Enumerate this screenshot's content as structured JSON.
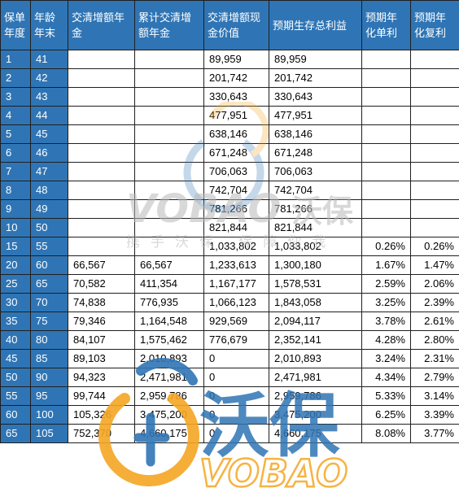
{
  "table": {
    "headers": [
      "保单年度",
      "年龄年末",
      "交清增额年金",
      "累计交清增额年金",
      "交清增额现金价值",
      "预期生存总利益",
      "预期年化单利",
      "预期年化复利"
    ],
    "rows": [
      [
        "1",
        "41",
        "",
        "",
        "89,959",
        "89,959",
        "",
        ""
      ],
      [
        "2",
        "42",
        "",
        "",
        "201,742",
        "201,742",
        "",
        ""
      ],
      [
        "3",
        "43",
        "",
        "",
        "330,643",
        "330,643",
        "",
        ""
      ],
      [
        "4",
        "44",
        "",
        "",
        "477,951",
        "477,951",
        "",
        ""
      ],
      [
        "5",
        "45",
        "",
        "",
        "638,146",
        "638,146",
        "",
        ""
      ],
      [
        "6",
        "46",
        "",
        "",
        "671,248",
        "671,248",
        "",
        ""
      ],
      [
        "7",
        "47",
        "",
        "",
        "706,063",
        "706,063",
        "",
        ""
      ],
      [
        "8",
        "48",
        "",
        "",
        "742,704",
        "742,704",
        "",
        ""
      ],
      [
        "9",
        "49",
        "",
        "",
        "781,266",
        "781,266",
        "",
        ""
      ],
      [
        "10",
        "50",
        "",
        "",
        "821,844",
        "821,844",
        "",
        ""
      ],
      [
        "15",
        "55",
        "",
        "",
        "1,033,802",
        "1,033,802",
        "0.26%",
        "0.26%"
      ],
      [
        "20",
        "60",
        "66,567",
        "66,567",
        "1,233,613",
        "1,300,180",
        "1.67%",
        "1.47%"
      ],
      [
        "25",
        "65",
        "70,582",
        "411,354",
        "1,167,177",
        "1,578,531",
        "2.59%",
        "2.06%"
      ],
      [
        "30",
        "70",
        "74,838",
        "776,935",
        "1,066,123",
        "1,843,058",
        "3.25%",
        "2.39%"
      ],
      [
        "35",
        "75",
        "79,346",
        "1,164,548",
        "929,569",
        "2,094,117",
        "3.78%",
        "2.61%"
      ],
      [
        "40",
        "80",
        "84,107",
        "1,575,462",
        "776,679",
        "2,352,141",
        "4.28%",
        "2.80%"
      ],
      [
        "45",
        "85",
        "89,103",
        "2,010,893",
        "0",
        "2,010,893",
        "3.24%",
        "2.31%"
      ],
      [
        "50",
        "90",
        "94,323",
        "2,471,981",
        "0",
        "2,471,981",
        "4.34%",
        "2.79%"
      ],
      [
        "55",
        "95",
        "99,744",
        "2,959,786",
        "0",
        "2,959,786",
        "5.33%",
        "3.14%"
      ],
      [
        "60",
        "100",
        "105,326",
        "3,475,200",
        "0",
        "3,475,200",
        "6.25%",
        "3.39%"
      ],
      [
        "65",
        "105",
        "752,370",
        "4,660,175",
        "0",
        "4,660,175",
        "8.08%",
        "3.77%"
      ]
    ]
  },
  "watermark": {
    "brand_en": "VOBAO",
    "brand_cn": "沃保",
    "slogan": "携手沃保 保障你我",
    "accent_blue": "#2f75b5",
    "accent_orange": "#f5a623"
  },
  "colors": {
    "header_bg": "#2f75b5",
    "header_text": "#ffffff",
    "border": "#1f1f1f"
  }
}
